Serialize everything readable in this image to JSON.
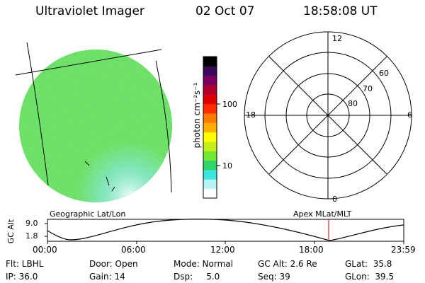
{
  "header": {
    "instrument": "Ultraviolet Imager",
    "date": "02 Oct 07",
    "time": "18:58:08 UT"
  },
  "colorbar": {
    "label": "photon cm⁻²s⁻¹",
    "ticks": [
      "100",
      "10"
    ],
    "scale": "log",
    "colors": [
      "#ffffff",
      "#b8f4f4",
      "#3ce6e0",
      "#2fd46a",
      "#6ee832",
      "#c6f018",
      "#ffff00",
      "#ffb000",
      "#ff7a00",
      "#ff2a00",
      "#e00000",
      "#b00030",
      "#7a0060",
      "#3a0a5a",
      "#000000"
    ]
  },
  "polar_plot": {
    "lat_labels": [
      "80",
      "70",
      "60"
    ],
    "mlt_labels": {
      "top": "12",
      "bottom": "0",
      "left": "18",
      "right": "6"
    }
  },
  "orbit_panel": {
    "left_title": "Geographic Lat/Lon",
    "right_title": "Apex MLat/MLT",
    "axis_label": "GC Alt",
    "y_ticks": [
      "9.0",
      "1.8"
    ],
    "x_ticks": [
      "00:00",
      "06:00",
      "12:00",
      "18:00",
      "23:59"
    ],
    "curve_color": "#000000",
    "marker_color": "#cc0000"
  },
  "info": {
    "row1": {
      "filter": "Flt: LBHL",
      "door": "Door: Open",
      "mode": "Mode: Normal",
      "gc_alt": "GC Alt: 2.6 Re",
      "glat": "GLat:  35.8"
    },
    "row2": {
      "ip": "IP: 36.0",
      "gain": "Gain: 14",
      "dsp": "Dsp:     5.0",
      "seq": "Seq: 39",
      "glon": "GLon:  39.5"
    }
  }
}
